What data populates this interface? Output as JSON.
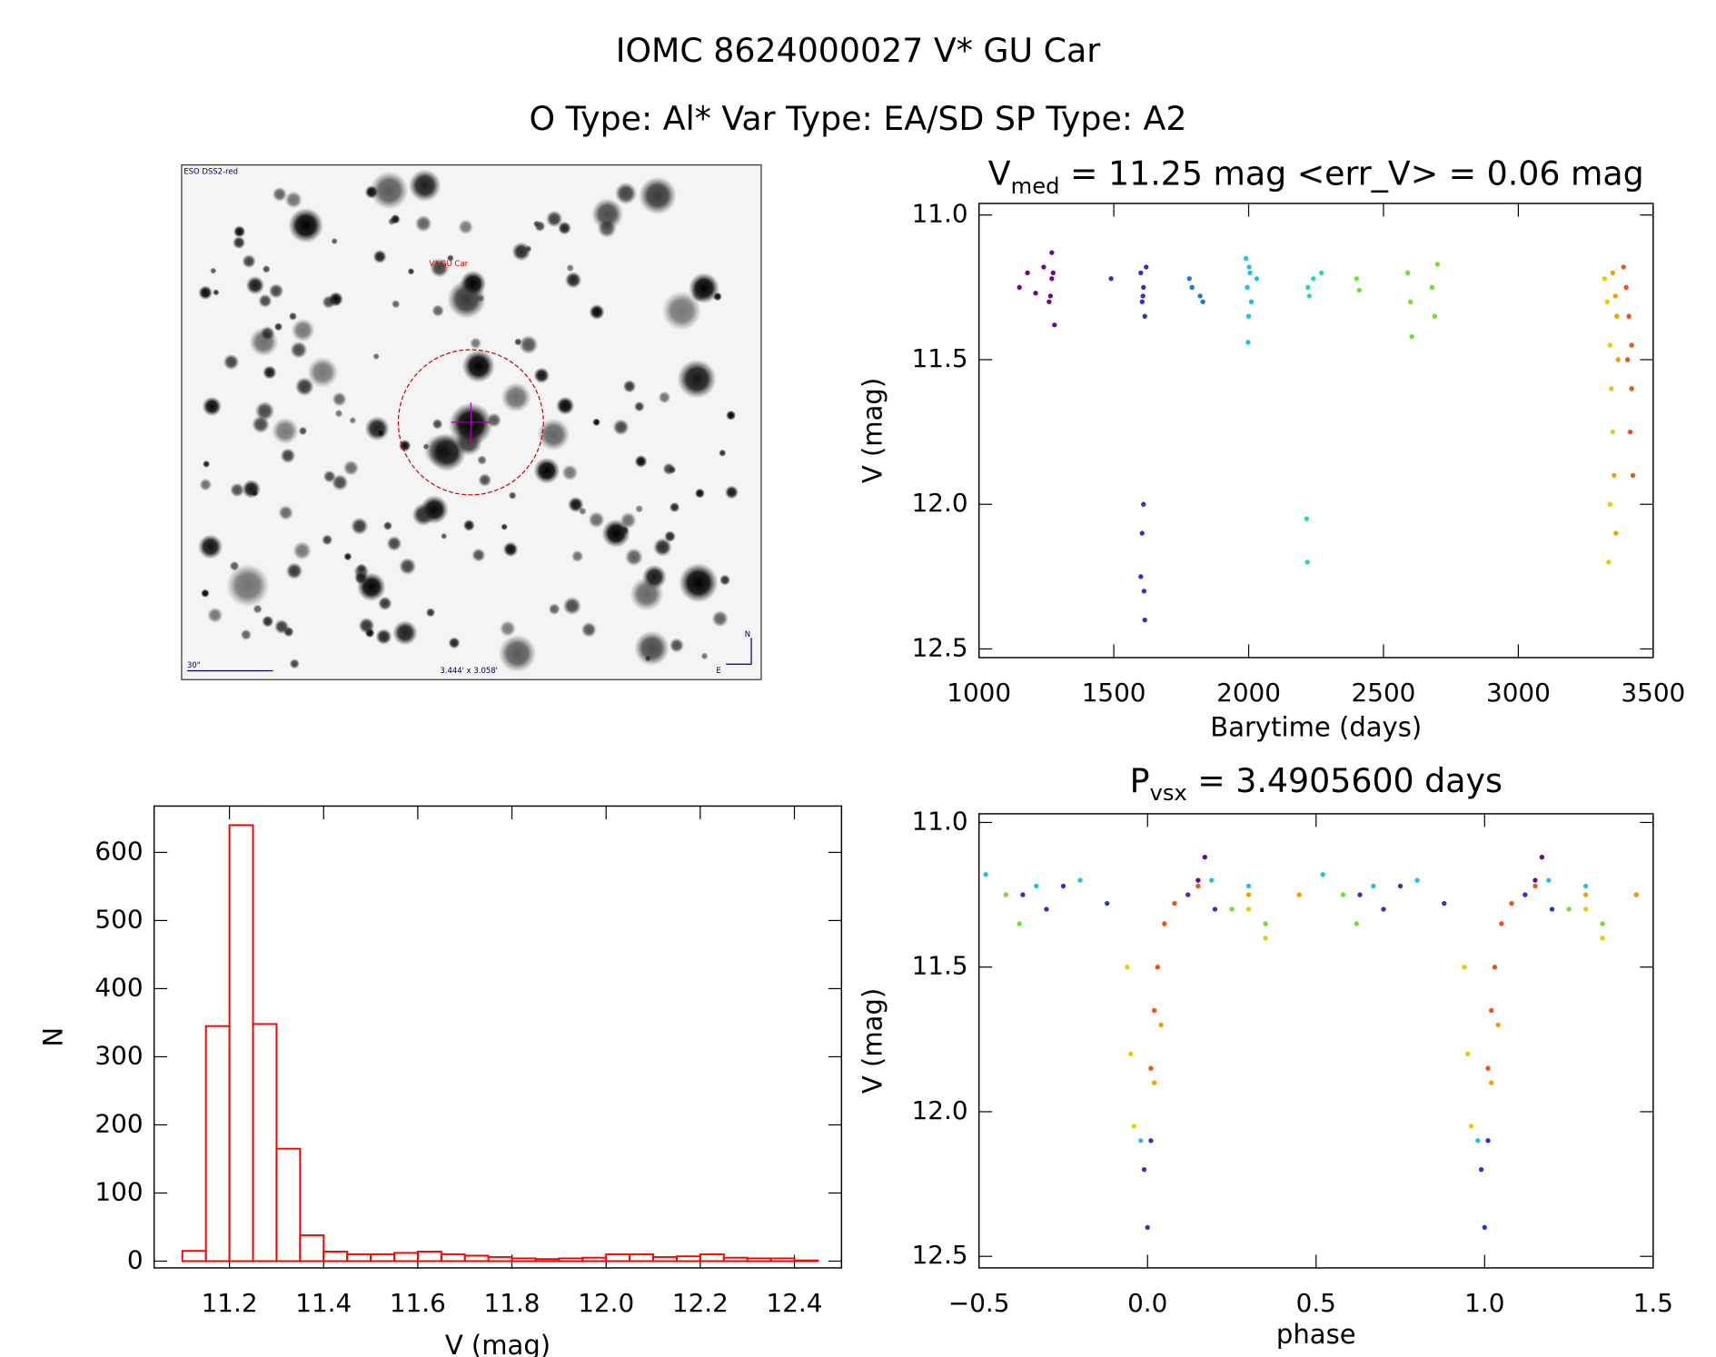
{
  "header": {
    "title": "IOMC 8624000027   V* GU Car",
    "subtitle": "O Type: Al*  Var Type: EA/SD  SP Type: A2"
  },
  "image": {
    "survey": "ESO DSS2-red",
    "target": "V* GU Car",
    "scale": "30\"",
    "size": "3.444' x 3.058'",
    "north": "N",
    "east": "E"
  },
  "chart_data": [
    {
      "type": "scatter",
      "title": "V",
      "title_sub": "med",
      "title_rest": " = 11.25 mag <err_V> = 0.06 mag",
      "x_label": "Barytime (days)",
      "y_label": "V (mag)",
      "xlim": [
        1000,
        3500
      ],
      "xticks": [
        1000,
        1500,
        2000,
        2500,
        3000,
        3500
      ],
      "ylim": [
        12.53,
        10.96
      ],
      "yticks": [
        {
          "value": 11.0,
          "label": "11.0"
        },
        11.5,
        {
          "value": 12.0,
          "label": "12.0"
        },
        12.5
      ],
      "series": [
        {
          "color": "#6a0a8a",
          "x": [
            1150,
            1180,
            1210,
            1240,
            1260,
            1270,
            1280,
            1270,
            1265,
            1275
          ],
          "values": [
            11.25,
            11.2,
            11.27,
            11.18,
            11.3,
            11.13,
            11.38,
            11.22,
            11.28,
            11.2
          ]
        },
        {
          "color": "#3030d0",
          "x": [
            1490,
            1600,
            1605,
            1610,
            1615,
            1620,
            1610,
            1605,
            1600,
            1615,
            1612,
            1608
          ],
          "values": [
            11.22,
            11.2,
            11.3,
            11.25,
            11.35,
            11.18,
            12.0,
            12.1,
            12.25,
            12.4,
            12.3,
            11.28
          ]
        },
        {
          "color": "#2070e0",
          "x": [
            1780,
            1790,
            1820,
            1830
          ],
          "values": [
            11.22,
            11.25,
            11.28,
            11.3
          ]
        },
        {
          "color": "#20c0e0",
          "x": [
            1990,
            1995,
            2000,
            2005,
            2010,
            2030,
            1998,
            2002
          ],
          "values": [
            11.15,
            11.25,
            11.35,
            11.2,
            11.3,
            11.22,
            11.44,
            11.18
          ]
        },
        {
          "color": "#20e0a0",
          "x": [
            2220,
            2225,
            2240,
            2270,
            2215,
            2218
          ],
          "values": [
            11.25,
            11.28,
            11.22,
            11.2,
            12.05,
            12.2
          ]
        },
        {
          "color": "#70e030",
          "x": [
            2400,
            2410,
            2590,
            2600,
            2605,
            2680,
            2690,
            2700
          ],
          "values": [
            11.22,
            11.26,
            11.2,
            11.3,
            11.42,
            11.25,
            11.35,
            11.17
          ]
        },
        {
          "color": "#e0d000",
          "x": [
            3320,
            3330,
            3340,
            3345,
            3350,
            3340,
            3335
          ],
          "values": [
            11.22,
            11.3,
            11.45,
            11.6,
            11.75,
            12.0,
            12.2
          ]
        },
        {
          "color": "#f0a000",
          "x": [
            3350,
            3360,
            3365,
            3370,
            3355,
            3362
          ],
          "values": [
            11.2,
            11.28,
            11.35,
            11.5,
            11.9,
            12.1
          ]
        },
        {
          "color": "#f05010",
          "x": [
            3390,
            3400,
            3410,
            3420,
            3420,
            3415,
            3425,
            3405
          ],
          "values": [
            11.18,
            11.25,
            11.35,
            11.45,
            11.6,
            11.75,
            11.9,
            11.5
          ]
        }
      ]
    },
    {
      "type": "scatter",
      "title": "P",
      "title_sub": "vsx",
      "title_rest": " = 3.4905600 days",
      "x_label": "phase",
      "y_label": "V (mag)",
      "xlim": [
        -0.5,
        1.5
      ],
      "xticks": [
        {
          "value": -0.5,
          "label": "−0.5"
        },
        {
          "value": 0.0,
          "label": "0.0"
        },
        0.5,
        {
          "value": 1.0,
          "label": "1.0"
        },
        1.5
      ],
      "ylim": [
        12.54,
        10.97
      ],
      "yticks": [
        {
          "value": 11.0,
          "label": "11.0"
        },
        11.5,
        {
          "value": 12.0,
          "label": "12.0"
        },
        12.5
      ],
      "series": [
        {
          "color": "#3030d0",
          "x": [
            -0.37,
            -0.3,
            -0.25,
            -0.12,
            -0.01,
            0.0,
            0.01,
            0.12,
            0.2,
            0.63,
            0.7,
            0.75,
            0.88,
            0.99,
            1.0,
            1.01,
            1.12,
            1.2,
            1.45
          ],
          "values": [
            11.25,
            11.3,
            11.22,
            11.28,
            12.2,
            12.4,
            12.1,
            11.25,
            11.3,
            11.25,
            11.3,
            11.22,
            11.28,
            12.2,
            12.4,
            12.1,
            11.25,
            11.3,
            11.25
          ]
        },
        {
          "color": "#20c0e0",
          "x": [
            -0.48,
            -0.33,
            -0.2,
            -0.02,
            0.19,
            0.3,
            0.52,
            0.67,
            0.8,
            0.98,
            1.19,
            1.3
          ],
          "values": [
            11.18,
            11.22,
            11.2,
            12.1,
            11.2,
            11.22,
            11.18,
            11.22,
            11.2,
            12.1,
            11.2,
            11.22
          ]
        },
        {
          "color": "#70e030",
          "x": [
            -0.42,
            -0.38,
            0.25,
            0.35,
            0.58,
            0.62,
            1.25,
            1.35
          ],
          "values": [
            11.25,
            11.35,
            11.3,
            11.35,
            11.25,
            11.35,
            11.3,
            11.35
          ]
        },
        {
          "color": "#e0d000",
          "x": [
            -0.06,
            -0.05,
            -0.04,
            0.3,
            0.35,
            0.94,
            0.95,
            0.96,
            1.3,
            1.35
          ],
          "values": [
            11.5,
            11.8,
            12.05,
            11.3,
            11.4,
            11.5,
            11.8,
            12.05,
            11.3,
            11.4
          ]
        },
        {
          "color": "#f0a000",
          "x": [
            0.02,
            0.04,
            0.3,
            0.45,
            1.02,
            1.04,
            1.3,
            1.45
          ],
          "values": [
            11.9,
            11.7,
            11.25,
            11.25,
            11.9,
            11.7,
            11.25,
            11.25
          ]
        },
        {
          "color": "#f05010",
          "x": [
            0.01,
            0.02,
            0.03,
            0.05,
            0.08,
            0.15,
            1.01,
            1.02,
            1.03,
            1.05,
            1.08,
            1.15
          ],
          "values": [
            11.85,
            11.65,
            11.5,
            11.35,
            11.28,
            11.22,
            11.85,
            11.65,
            11.5,
            11.35,
            11.28,
            11.22
          ]
        },
        {
          "color": "#6a0a8a",
          "x": [
            0.15,
            0.17,
            1.15,
            1.17
          ],
          "values": [
            11.2,
            11.12,
            11.2,
            11.12
          ]
        }
      ]
    },
    {
      "type": "histogram",
      "x_label": "V (mag)",
      "y_label": "N",
      "color": "#ff0000",
      "bins": [
        11.1,
        11.15,
        11.2,
        11.25,
        11.3,
        11.35,
        11.4,
        11.45,
        11.5,
        11.55,
        11.6,
        11.65,
        11.7,
        11.75,
        11.8,
        11.85,
        11.9,
        11.95,
        12.0,
        12.05,
        12.1,
        12.15,
        12.2,
        12.25,
        12.3,
        12.35,
        12.4,
        12.45
      ],
      "values": [
        15,
        345,
        640,
        348,
        165,
        38,
        14,
        10,
        10,
        12,
        14,
        10,
        8,
        6,
        4,
        3,
        4,
        5,
        10,
        10,
        6,
        7,
        10,
        5,
        4,
        4,
        1
      ],
      "xlim": [
        11.04,
        12.5
      ],
      "xticks": [
        11.2,
        11.4,
        11.6,
        11.8,
        {
          "value": 12.0,
          "label": "12.0"
        },
        12.2,
        12.4
      ],
      "ylim": [
        -10,
        668
      ],
      "yticks": [
        0,
        100,
        200,
        300,
        400,
        500,
        600
      ]
    }
  ]
}
